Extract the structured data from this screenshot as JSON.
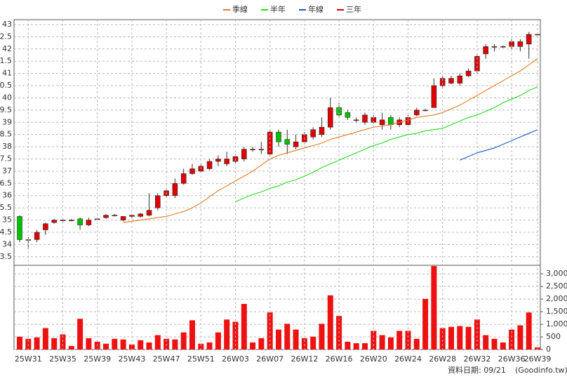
{
  "chart_data": [
    {
      "type": "candlestick",
      "open": [
        35.15,
        34.2,
        34.2,
        34.6,
        34.9,
        35.0,
        35.0,
        35.05,
        34.8,
        35.05,
        35.1,
        35.2,
        35.0,
        35.15,
        35.15,
        35.2,
        35.5,
        36.0,
        36.0,
        36.5,
        36.9,
        37.0,
        37.1,
        37.4,
        37.3,
        37.4,
        37.5,
        37.9,
        37.9,
        37.7,
        38.6,
        38.3,
        38.0,
        38.2,
        38.4,
        38.5,
        38.8,
        39.6,
        39.4,
        39.1,
        39.0,
        39.0,
        38.9,
        39.2,
        38.9,
        38.9,
        39.3,
        39.5,
        39.6,
        40.5,
        40.6,
        40.6,
        40.9,
        41.1,
        41.8,
        42.1,
        42.1,
        42.1,
        42.1,
        42.2,
        42.6
      ],
      "high": [
        35.2,
        34.3,
        34.6,
        34.9,
        35.05,
        35.05,
        35.05,
        35.1,
        35.1,
        35.1,
        35.25,
        35.25,
        35.15,
        35.25,
        35.3,
        36.1,
        36.1,
        36.3,
        36.7,
        37.1,
        37.3,
        37.3,
        37.5,
        37.65,
        37.8,
        37.7,
        38.0,
        38.0,
        38.2,
        38.7,
        38.7,
        38.7,
        38.5,
        38.6,
        38.8,
        39.2,
        40.0,
        39.8,
        39.5,
        39.2,
        39.4,
        39.3,
        39.4,
        39.3,
        39.2,
        39.3,
        39.6,
        39.55,
        40.8,
        40.9,
        40.9,
        41.0,
        41.2,
        41.8,
        42.2,
        42.2,
        42.15,
        42.4,
        42.4,
        42.7,
        42.65
      ],
      "low": [
        34.1,
        33.8,
        34.1,
        34.4,
        34.85,
        34.95,
        34.95,
        34.6,
        34.75,
        35.0,
        35.05,
        35.15,
        34.95,
        35.1,
        35.1,
        35.15,
        35.4,
        35.95,
        35.9,
        36.45,
        36.85,
        36.95,
        37.05,
        37.2,
        37.2,
        37.3,
        37.4,
        37.8,
        37.7,
        37.6,
        38.0,
        37.7,
        37.9,
        38.1,
        38.3,
        38.4,
        38.7,
        39.2,
        39.1,
        39.0,
        38.9,
        38.95,
        38.7,
        38.7,
        38.8,
        38.8,
        39.25,
        39.45,
        39.6,
        40.4,
        40.55,
        40.5,
        40.85,
        41.0,
        41.6,
        41.9,
        42.05,
        42.0,
        41.9,
        41.6,
        42.55
      ],
      "close": [
        34.2,
        34.2,
        34.5,
        34.85,
        35.0,
        35.0,
        35.0,
        34.8,
        35.0,
        35.05,
        35.2,
        35.2,
        35.15,
        35.2,
        35.25,
        35.4,
        36.0,
        36.2,
        36.5,
        36.9,
        37.1,
        37.2,
        37.4,
        37.5,
        37.5,
        37.6,
        37.9,
        37.9,
        37.9,
        38.6,
        38.2,
        38.1,
        38.2,
        38.5,
        38.7,
        38.8,
        39.6,
        39.3,
        39.2,
        39.1,
        39.3,
        39.2,
        39.1,
        38.9,
        39.1,
        39.2,
        39.5,
        39.5,
        40.5,
        40.8,
        40.8,
        40.9,
        41.1,
        41.7,
        42.1,
        42.1,
        42.1,
        42.3,
        42.3,
        42.6,
        42.6
      ],
      "up_color": "#e00000",
      "down_color": "#00c000",
      "series": [
        {
          "name": "季線",
          "color": "#e87722",
          "values": [
            null,
            null,
            null,
            null,
            null,
            null,
            null,
            null,
            null,
            null,
            null,
            null,
            34.9,
            34.95,
            35.0,
            35.05,
            35.1,
            35.15,
            35.25,
            35.35,
            35.5,
            35.7,
            35.95,
            36.2,
            36.4,
            36.6,
            36.8,
            37.0,
            37.25,
            37.5,
            37.65,
            37.75,
            37.85,
            37.95,
            38.05,
            38.15,
            38.3,
            38.4,
            38.5,
            38.6,
            38.7,
            38.8,
            38.85,
            38.9,
            39.0,
            39.1,
            39.2,
            39.25,
            39.3,
            39.4,
            39.55,
            39.7,
            39.9,
            40.1,
            40.3,
            40.5,
            40.7,
            40.9,
            41.1,
            41.35,
            41.6
          ]
        },
        {
          "name": "半年",
          "color": "#22dd22",
          "values": [
            null,
            null,
            null,
            null,
            null,
            null,
            null,
            null,
            null,
            null,
            null,
            null,
            null,
            null,
            null,
            null,
            null,
            null,
            null,
            null,
            null,
            null,
            null,
            null,
            null,
            35.75,
            35.9,
            36.05,
            36.15,
            36.3,
            36.4,
            36.55,
            36.65,
            36.8,
            36.95,
            37.15,
            37.3,
            37.45,
            37.6,
            37.75,
            37.9,
            38.05,
            38.15,
            38.3,
            38.4,
            38.5,
            38.55,
            38.65,
            38.7,
            38.75,
            38.9,
            39.05,
            39.2,
            39.3,
            39.45,
            39.6,
            39.8,
            39.95,
            40.1,
            40.3,
            40.45
          ]
        },
        {
          "name": "年線",
          "color": "#2255cc",
          "values": [
            null,
            null,
            null,
            null,
            null,
            null,
            null,
            null,
            null,
            null,
            null,
            null,
            null,
            null,
            null,
            null,
            null,
            null,
            null,
            null,
            null,
            null,
            null,
            null,
            null,
            null,
            null,
            null,
            null,
            null,
            null,
            null,
            null,
            null,
            null,
            null,
            null,
            null,
            null,
            null,
            null,
            null,
            null,
            null,
            null,
            null,
            null,
            null,
            null,
            null,
            null,
            37.45,
            37.6,
            37.75,
            37.85,
            37.95,
            38.1,
            38.25,
            38.4,
            38.55,
            38.7
          ]
        },
        {
          "name": "三年",
          "color": "#e00000",
          "values": [
            null,
            null,
            null,
            null,
            null,
            null,
            null,
            null,
            null,
            null,
            null,
            null,
            null,
            null,
            null,
            null,
            null,
            null,
            null,
            null,
            null,
            null,
            null,
            null,
            null,
            null,
            null,
            null,
            null,
            null,
            null,
            null,
            null,
            null,
            null,
            null,
            null,
            null,
            null,
            null,
            null,
            null,
            null,
            null,
            null,
            null,
            null,
            null,
            null,
            null,
            null,
            null,
            null,
            null,
            null,
            null,
            null,
            null,
            null,
            null,
            null
          ]
        }
      ],
      "ylim": [
        33.15,
        43.2
      ],
      "yticks": [
        43,
        42.5,
        42,
        41.5,
        41,
        40.5,
        40,
        39.5,
        39,
        38.5,
        38,
        37.5,
        37,
        36.5,
        36,
        35.5,
        35,
        34.5,
        34,
        33.5
      ],
      "grid": true
    },
    {
      "type": "bar",
      "categories": [
        null,
        "25W31",
        null,
        null,
        null,
        "25W35",
        null,
        null,
        null,
        "25W39",
        null,
        null,
        null,
        "25W43",
        null,
        null,
        null,
        "25W47",
        null,
        null,
        null,
        "25W51",
        null,
        null,
        null,
        "26W03",
        null,
        null,
        null,
        "26W07",
        null,
        null,
        null,
        "26W12",
        null,
        null,
        null,
        "26W16",
        null,
        null,
        null,
        "26W20",
        null,
        null,
        null,
        "26W24",
        null,
        null,
        null,
        "26W28",
        null,
        null,
        null,
        "26W32",
        null,
        null,
        null,
        "26W36",
        null,
        null,
        "26W39"
      ],
      "values": [
        510,
        425,
        480,
        850,
        450,
        600,
        140,
        1220,
        450,
        310,
        230,
        425,
        400,
        200,
        370,
        280,
        570,
        425,
        400,
        680,
        1160,
        230,
        280,
        680,
        1190,
        1100,
        1810,
        280,
        450,
        1470,
        790,
        1020,
        790,
        450,
        510,
        1020,
        2150,
        1330,
        310,
        250,
        250,
        740,
        570,
        480,
        740,
        740,
        425,
        2010,
        3310,
        850,
        900,
        930,
        900,
        1190,
        570,
        425,
        280,
        790,
        960,
        1470,
        85
      ],
      "color": "#ee1111",
      "ylim": [
        0,
        3340
      ],
      "yticks": [
        {
          "value": 3000,
          "label": "3,000"
        },
        {
          "value": 2500,
          "label": "2,500"
        },
        {
          "value": 2000,
          "label": "2,000"
        },
        {
          "value": 1500,
          "label": "1,500"
        },
        {
          "value": 1000,
          "label": "1,000"
        },
        500,
        0
      ],
      "grid": true
    }
  ],
  "footer": {
    "date": "資料日期: 09/21",
    "source": "(Goodinfo.tw)"
  }
}
